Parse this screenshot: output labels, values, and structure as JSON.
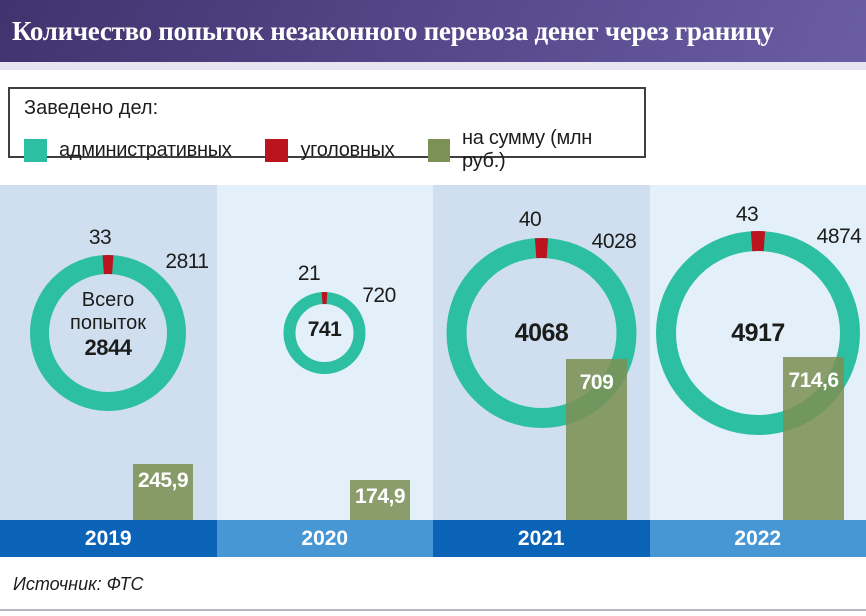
{
  "title": "Количество попыток незаконного перевоза денег через границу",
  "legend": {
    "heading": "Заведено дел:",
    "items": [
      {
        "label": "административных",
        "color": "#2dbfa2"
      },
      {
        "label": "уголовных",
        "color": "#bb141f"
      },
      {
        "label": "на сумму (млн руб.)",
        "color": "#7c9155"
      }
    ]
  },
  "source": "Источник: ФТС",
  "colors": {
    "administrative": "#2dbfa2",
    "criminal": "#bb141f",
    "sum_bar": "#7c9155",
    "panel_dark": "#cfdff0",
    "panel_light": "#e3f0fa",
    "band_dark": "#0a63b7",
    "band_light": "#4697d4",
    "title_gradient_start": "#40336e",
    "title_gradient_end": "#6a5da2"
  },
  "panels": [
    {
      "year": "2019",
      "criminal": "33",
      "administrative": "2811",
      "total": "2844",
      "caption_line1": "Всего",
      "caption_line2": "попыток",
      "sum": "245,9"
    },
    {
      "year": "2020",
      "criminal": "21",
      "administrative": "720",
      "total": "741",
      "sum": "174,9"
    },
    {
      "year": "2021",
      "criminal": "40",
      "administrative": "4028",
      "total": "4068",
      "sum": "709"
    },
    {
      "year": "2022",
      "criminal": "43",
      "administrative": "4874",
      "total": "4917",
      "sum": "714,6"
    }
  ],
  "chart_data": {
    "type": "donut+bar",
    "categories": [
      "2019",
      "2020",
      "2021",
      "2022"
    ],
    "series": [
      {
        "name": "административных (дел)",
        "render": "donut-ring-teal",
        "values": [
          2811,
          720,
          4028,
          4874
        ]
      },
      {
        "name": "уголовных (дел)",
        "render": "donut-ring-red-tick",
        "values": [
          33,
          21,
          40,
          43
        ]
      },
      {
        "name": "всего попыток",
        "render": "donut-center-total",
        "values": [
          2844,
          741,
          4068,
          4917
        ]
      },
      {
        "name": "на сумму (млн руб.)",
        "render": "bar",
        "values": [
          245.9,
          174.9,
          709,
          714.6
        ]
      }
    ],
    "title": "Количество попыток незаконного перевоза денег через границу",
    "legend_position": "top-left box",
    "notes": "Donut diameter scales with total attempts; olive bar height scales with seized sum; red tick at 12 o'clock of each ring"
  }
}
